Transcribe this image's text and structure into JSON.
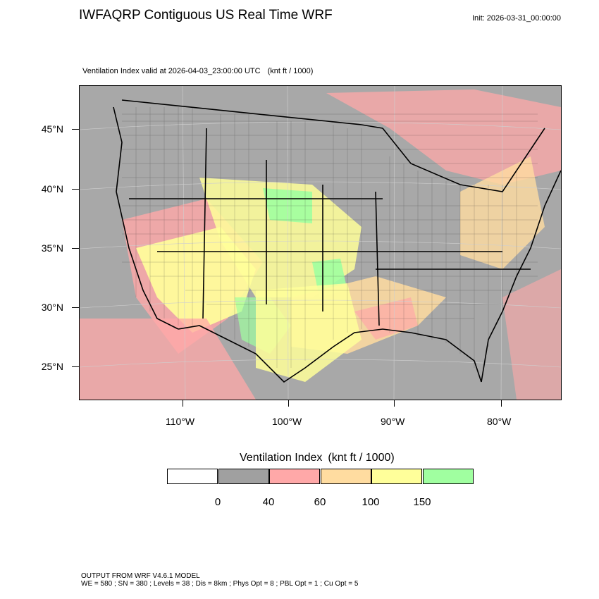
{
  "header": {
    "title": "IWFAQRP Contiguous US Real Time WRF",
    "init": "Init: 2026-03-31_00:00:00",
    "subtitle": "Ventilation Index valid at 2026-04-03_23:00:00 UTC",
    "units": "(knt ft / 1000)"
  },
  "axes": {
    "lat_labels": [
      "45°N",
      "40°N",
      "35°N",
      "30°N",
      "25°N"
    ],
    "lon_labels": [
      "110°W",
      "100°W",
      "90°W",
      "80°W"
    ]
  },
  "legend": {
    "title": "Ventilation Index",
    "units": "(knt ft / 1000)",
    "colors": [
      "#ffffff",
      "#a0a0a0",
      "#ffa8a8",
      "#ffdca0",
      "#ffff9a",
      "#a0ffa0"
    ],
    "ticks": [
      "0",
      "40",
      "60",
      "100",
      "150"
    ]
  },
  "footer": {
    "line1": "OUTPUT FROM WRF V4.6.1 MODEL",
    "line2": "WE = 580 ; SN = 380 ; Levels = 38 ; Dis = 8km ; Phys Opt = 8 ; PBL Opt = 1 ; Cu Opt = 5"
  }
}
